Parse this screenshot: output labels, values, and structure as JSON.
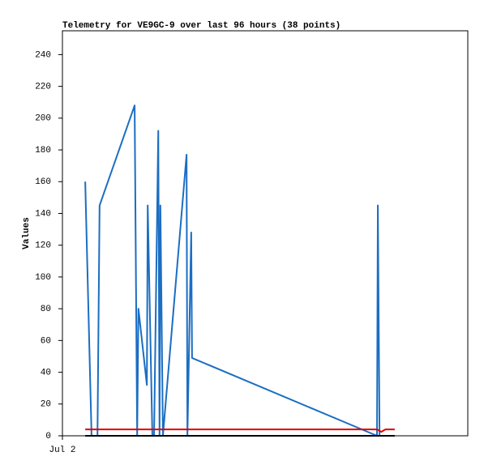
{
  "chart_data": {
    "type": "line",
    "title": "Telemetry for VE9GC-9 over last 96 hours (38 points)",
    "y_label": "Values",
    "xlim": [
      0,
      96
    ],
    "xticks": [
      {
        "value": 0,
        "label": "Jul 2"
      }
    ],
    "ylim": [
      0,
      255
    ],
    "yticks": [
      0,
      20,
      40,
      60,
      80,
      100,
      120,
      140,
      160,
      180,
      200,
      220,
      240
    ],
    "grid": false,
    "series": [
      {
        "color": "#1b6ec2",
        "x": [
          5.4,
          6.9,
          8.3,
          8.8,
          17.1,
          17.7,
          18.0,
          20.0,
          20.2,
          21.3,
          21.7,
          22.7,
          23.0,
          23.2,
          23.8,
          29.4,
          29.6,
          30.5,
          30.7,
          74.5,
          74.7,
          75.1
        ],
        "values": [
          160,
          0,
          0,
          145,
          208,
          0,
          80,
          32,
          145,
          0,
          0,
          192,
          0,
          145,
          0,
          177,
          0,
          128,
          49,
          0,
          145,
          0
        ]
      },
      {
        "color": "#e00000",
        "x": [
          5.4,
          74.5,
          75.5,
          76.5,
          78.7
        ],
        "values": [
          4,
          4,
          2.5,
          4,
          4
        ]
      },
      {
        "color": "#000000",
        "x": [
          5.4,
          78.7
        ],
        "values": [
          0,
          0
        ]
      }
    ]
  }
}
